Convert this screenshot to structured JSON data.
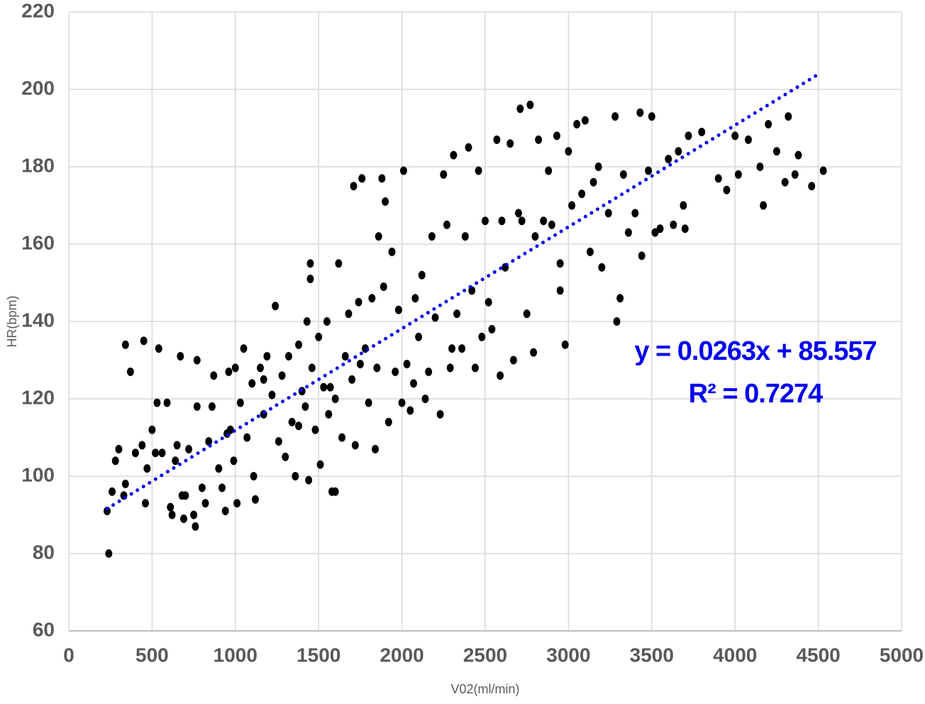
{
  "chart_data": {
    "type": "scatter",
    "xlabel": "V02(ml/min)",
    "ylabel": "HR(bpm)",
    "xlim": [
      0,
      5000
    ],
    "xticks": [
      0,
      500,
      1000,
      1500,
      2000,
      2500,
      3000,
      3500,
      4000,
      4500,
      5000
    ],
    "ylim": [
      60,
      220
    ],
    "yticks": [
      60,
      80,
      100,
      120,
      140,
      160,
      180,
      200,
      220
    ],
    "grid": true,
    "points": {
      "color": "#000000",
      "x": [
        240,
        230,
        260,
        280,
        300,
        340,
        340,
        370,
        330,
        400,
        440,
        450,
        460,
        470,
        500,
        520,
        530,
        540,
        590,
        610,
        620,
        640,
        650,
        670,
        690,
        700,
        720,
        750,
        760,
        770,
        770,
        800,
        820,
        840,
        860,
        870,
        900,
        920,
        940,
        960,
        970,
        990,
        1000,
        1010,
        1030,
        1050,
        1070,
        1100,
        1110,
        1120,
        1150,
        1170,
        1190,
        1220,
        1240,
        1260,
        1280,
        1300,
        1320,
        1340,
        1360,
        1380,
        1400,
        1420,
        1430,
        1440,
        1450,
        1450,
        1460,
        1480,
        1500,
        1510,
        1530,
        1550,
        1560,
        1580,
        1600,
        1600,
        1620,
        1640,
        1660,
        1680,
        1700,
        1710,
        1720,
        1740,
        1760,
        1780,
        1800,
        1820,
        1840,
        1850,
        1860,
        1880,
        1890,
        1900,
        1920,
        1940,
        1960,
        1980,
        2000,
        2010,
        2030,
        2050,
        2080,
        2100,
        2120,
        2140,
        2160,
        2180,
        2200,
        2230,
        2250,
        2270,
        2290,
        2310,
        2330,
        2360,
        2380,
        2400,
        2420,
        2440,
        2460,
        2480,
        2500,
        2520,
        2540,
        2570,
        2590,
        2620,
        2650,
        2670,
        2700,
        2710,
        2720,
        2750,
        2770,
        2790,
        2800,
        2820,
        2850,
        2880,
        2900,
        2930,
        2950,
        2980,
        3000,
        3020,
        3050,
        3080,
        3100,
        3130,
        3150,
        3180,
        3200,
        3240,
        3280,
        3290,
        3310,
        3330,
        3360,
        3400,
        3430,
        3440,
        3480,
        3500,
        3520,
        3550,
        3600,
        3630,
        3660,
        3700,
        3720,
        3800,
        3900,
        3950,
        4000,
        4020,
        4080,
        4150,
        4170,
        4200,
        4250,
        4300,
        4320,
        4380,
        4460,
        4530,
        4360,
        3690,
        2950,
        2600,
        2300,
        2070,
        1750,
        1570,
        1380,
        1170,
        950,
        680,
        560
      ],
      "y": [
        80,
        91,
        96,
        104,
        107,
        98,
        134,
        127,
        95,
        106,
        108,
        135,
        93,
        102,
        112,
        106,
        119,
        133,
        119,
        92,
        90,
        104,
        108,
        131,
        89,
        95,
        107,
        90,
        87,
        130,
        118,
        97,
        93,
        109,
        118,
        126,
        102,
        97,
        91,
        127,
        112,
        104,
        128,
        93,
        119,
        133,
        110,
        124,
        100,
        94,
        128,
        116,
        131,
        121,
        144,
        109,
        126,
        105,
        131,
        114,
        100,
        134,
        122,
        118,
        140,
        99,
        155,
        151,
        128,
        112,
        136,
        103,
        123,
        140,
        116,
        96,
        120,
        96,
        155,
        110,
        131,
        142,
        125,
        175,
        108,
        145,
        177,
        133,
        119,
        146,
        107,
        128,
        162,
        177,
        149,
        171,
        114,
        158,
        127,
        143,
        119,
        179,
        129,
        117,
        146,
        136,
        152,
        120,
        127,
        162,
        141,
        116,
        178,
        165,
        128,
        183,
        142,
        133,
        162,
        185,
        148,
        128,
        179,
        136,
        166,
        145,
        138,
        187,
        126,
        154,
        186,
        130,
        168,
        195,
        166,
        142,
        196,
        132,
        162,
        187,
        166,
        179,
        165,
        188,
        155,
        134,
        184,
        170,
        191,
        173,
        192,
        158,
        176,
        180,
        154,
        168,
        193,
        140,
        146,
        178,
        163,
        168,
        194,
        157,
        179,
        193,
        163,
        164,
        182,
        165,
        184,
        164,
        188,
        189,
        177,
        174,
        188,
        178,
        187,
        180,
        170,
        191,
        184,
        176,
        193,
        183,
        175,
        179,
        178,
        170,
        148,
        166,
        133,
        124,
        129,
        123,
        113,
        125,
        111,
        95,
        106
      ]
    },
    "trendline": {
      "color": "#0000ee",
      "x": [
        230,
        4500
      ],
      "y": [
        91.6,
        203.9
      ]
    },
    "annotations": [
      "y = 0.0263x + 85.557",
      "R² = 0.7274"
    ]
  }
}
